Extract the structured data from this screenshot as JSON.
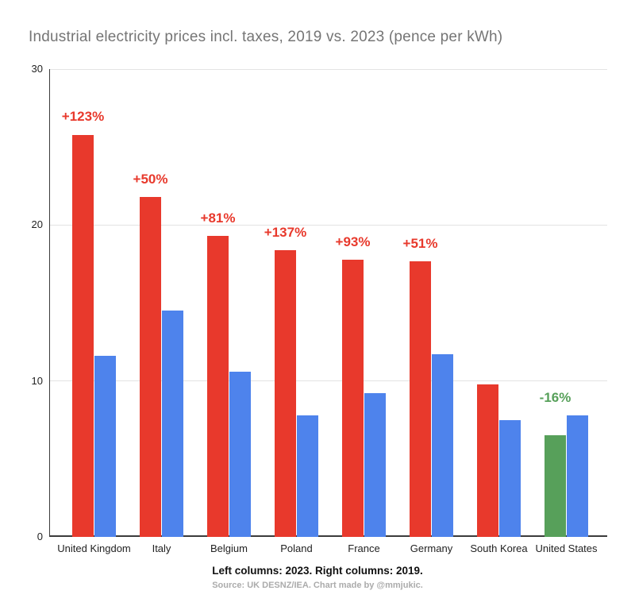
{
  "title": "Industrial electricity prices incl. taxes, 2019 vs. 2023 (pence per kWh)",
  "footer": {
    "legend": "Left columns: 2023. Right columns: 2019.",
    "source": "Source: UK DESNZ/IEA. Chart made by @mmjukic."
  },
  "colors": {
    "increase_red": "#E8392C",
    "year2019_blue": "#4E83EC",
    "decrease_green": "#57A05A",
    "title_gray": "#757575",
    "source_gray": "#ABABAB",
    "axis_dark": "#3B3B3B",
    "gridline_gray": "#E3E3E3",
    "tick_label_dark": "#222222"
  },
  "chart_data": {
    "type": "bar",
    "title": "Industrial electricity prices incl. taxes, 2019 vs. 2023 (pence per kWh)",
    "categories": [
      "United Kingdom",
      "Italy",
      "Belgium",
      "Poland",
      "France",
      "Germany",
      "South Korea",
      "United States"
    ],
    "series": [
      {
        "name": "2023",
        "values": [
          25.8,
          21.8,
          19.3,
          18.4,
          17.8,
          17.7,
          9.8,
          6.5
        ],
        "colors": [
          "#E8392C",
          "#E8392C",
          "#E8392C",
          "#E8392C",
          "#E8392C",
          "#E8392C",
          "#E8392C",
          "#57A05A"
        ]
      },
      {
        "name": "2019",
        "values": [
          11.6,
          14.5,
          10.6,
          7.8,
          9.2,
          11.7,
          7.5,
          7.8
        ],
        "colors": [
          "#4E83EC",
          "#4E83EC",
          "#4E83EC",
          "#4E83EC",
          "#4E83EC",
          "#4E83EC",
          "#4E83EC",
          "#4E83EC"
        ]
      }
    ],
    "annotations": [
      {
        "text": "+123%",
        "color": "#E8392C"
      },
      {
        "text": "+50%",
        "color": "#E8392C"
      },
      {
        "text": "+81%",
        "color": "#E8392C"
      },
      {
        "text": "+137%",
        "color": "#E8392C"
      },
      {
        "text": "+93%",
        "color": "#E8392C"
      },
      {
        "text": "+51%",
        "color": "#E8392C"
      },
      {
        "text": "",
        "color": ""
      },
      {
        "text": "-16%",
        "color": "#57A05A"
      }
    ],
    "xlabel": "",
    "ylabel": "",
    "ylim": [
      0,
      30
    ],
    "yticks": [
      0,
      10,
      20,
      30
    ],
    "grid": true,
    "legend_position": "none"
  }
}
